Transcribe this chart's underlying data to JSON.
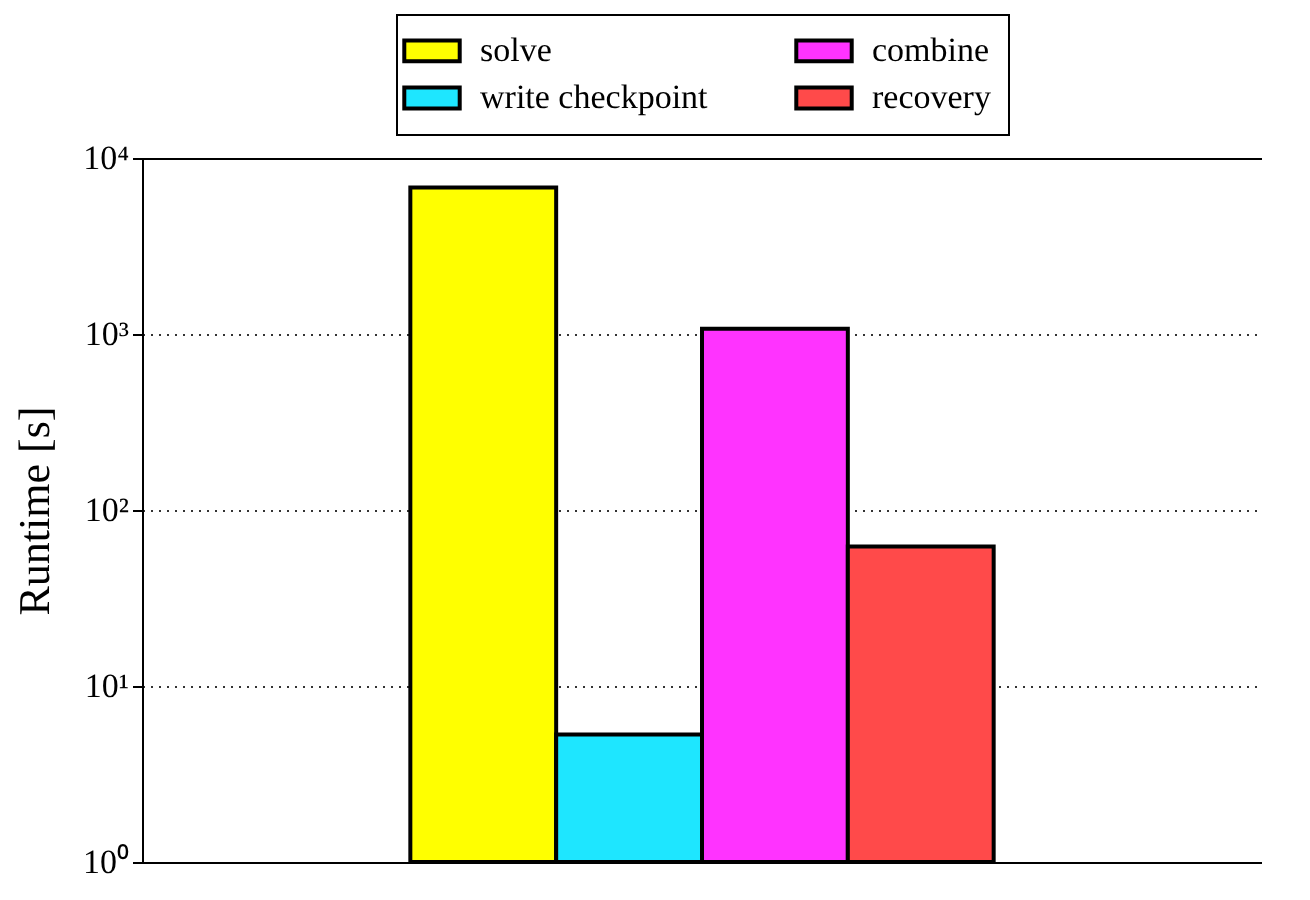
{
  "chart_data": {
    "type": "bar",
    "ylabel": "Runtime [s]",
    "categories": [
      null
    ],
    "series": [
      {
        "name": "solve",
        "color": "#ffff00",
        "values": [
          6800
        ]
      },
      {
        "name": "write checkpoint",
        "color": "#1ee6ff",
        "values": [
          5.3
        ]
      },
      {
        "name": "combine",
        "color": "#ff33ff",
        "values": [
          1070
        ]
      },
      {
        "name": "recovery",
        "color": "#ff4a4a",
        "values": [
          62
        ]
      }
    ],
    "log": "y",
    "ylim": [
      1,
      10000
    ],
    "yticks": [
      {
        "value": 1,
        "label": "10⁰"
      },
      {
        "value": 10,
        "label": "10¹"
      },
      {
        "value": 100,
        "label": "10²"
      },
      {
        "value": 1000,
        "label": "10³"
      },
      {
        "value": 10000,
        "label": "10⁴"
      }
    ],
    "grid": "y",
    "legend": "top"
  }
}
